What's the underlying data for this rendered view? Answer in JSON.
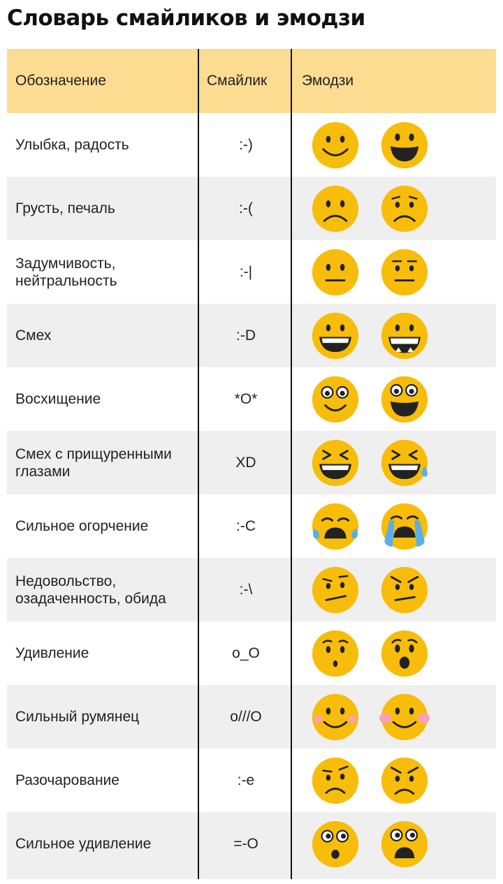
{
  "title": "Словарь смайликов и эмодзи",
  "columns": {
    "meaning": "Обозначение",
    "smiley": "Смайлик",
    "emoji": "Эмодзи"
  },
  "colors": {
    "header_bg": "#fcdc91",
    "shade_bg": "#efefef",
    "emoji_yellow": "#f7bd0a",
    "feature": "#222222",
    "tear": "#5aafe8",
    "blush": "#f7a0b8"
  },
  "rows": [
    {
      "meaning": "Улыбка, радость",
      "smiley": ":-)",
      "emoji": [
        "smile-emoji-icon",
        "grin-emoji-icon"
      ]
    },
    {
      "meaning": "Грусть, печаль",
      "smiley": ":-(",
      "emoji": [
        "frown-emoji-icon",
        "worried-emoji-icon"
      ]
    },
    {
      "meaning": "Задумчивость, нейтральность",
      "smiley": ":-|",
      "emoji": [
        "neutral-emoji-icon",
        "neutral-brows-emoji-icon"
      ]
    },
    {
      "meaning": "Смех",
      "smiley": ":-D",
      "emoji": [
        "laugh-emoji-icon",
        "laugh-teeth-emoji-icon"
      ]
    },
    {
      "meaning": "Восхищение",
      "smiley": "*O*",
      "emoji": [
        "admire-smile-emoji-icon",
        "admire-grin-emoji-icon"
      ]
    },
    {
      "meaning": "Смех с прищуренными глазами",
      "smiley": "XD",
      "emoji": [
        "squint-laugh-emoji-icon",
        "squint-laugh-tear-emoji-icon"
      ]
    },
    {
      "meaning": "Сильное огорчение",
      "smiley": ":-C",
      "emoji": [
        "crying-emoji-icon",
        "crying-blue-tears-emoji-icon"
      ]
    },
    {
      "meaning": "Недовольство, озадаченность, обида",
      "smiley": ":-\\",
      "emoji": [
        "confused-emoji-icon",
        "annoyed-emoji-icon"
      ]
    },
    {
      "meaning": "Удивление",
      "smiley": "o_O",
      "emoji": [
        "surprised-emoji-icon",
        "astonished-emoji-icon"
      ]
    },
    {
      "meaning": "Сильный румянец",
      "smiley": "o///O",
      "emoji": [
        "blush-emoji-icon",
        "blush-pink-emoji-icon"
      ]
    },
    {
      "meaning": "Разочарование",
      "smiley": ":-e",
      "emoji": [
        "disappointed-emoji-icon",
        "disappointed-angry-emoji-icon"
      ]
    },
    {
      "meaning": "Сильное удивление",
      "smiley": "=-O",
      "emoji": [
        "shocked-emoji-icon",
        "shocked-wide-emoji-icon"
      ]
    }
  ]
}
